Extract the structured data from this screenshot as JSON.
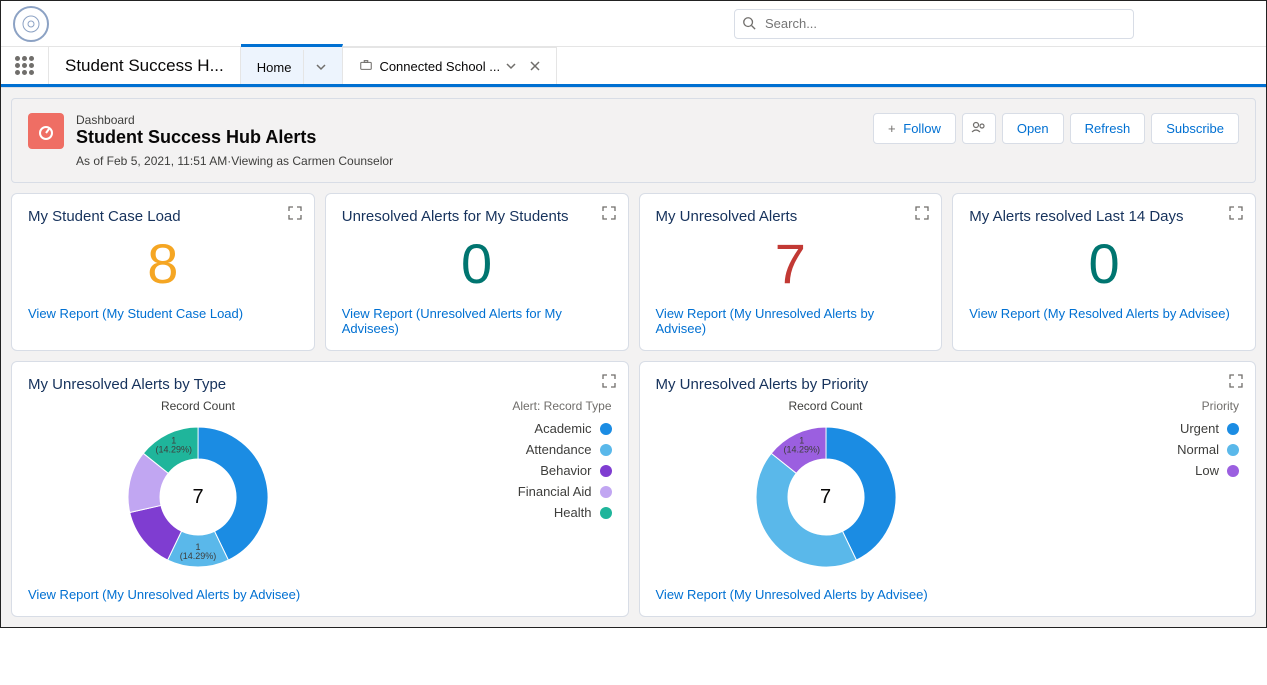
{
  "search": {
    "placeholder": "Search..."
  },
  "nav": {
    "app_name": "Student Success H...",
    "tab_home": "Home",
    "tab_connected": "Connected School ..."
  },
  "header": {
    "kicker": "Dashboard",
    "title": "Student Success Hub Alerts",
    "meta": "As of Feb 5, 2021, 11:51 AM·Viewing as Carmen Counselor",
    "follow": "Follow",
    "open": "Open",
    "refresh": "Refresh",
    "subscribe": "Subscribe"
  },
  "kpi": [
    {
      "title": "My Student Case Load",
      "value": "8",
      "color": "#f5a623",
      "link": "View Report (My Student Case Load)"
    },
    {
      "title": "Unresolved Alerts for My Students",
      "value": "0",
      "color": "#007570",
      "link": "View Report (Unresolved Alerts for My Advisees)"
    },
    {
      "title": "My Unresolved Alerts",
      "value": "7",
      "color": "#c23934",
      "link": "View Report (My Unresolved Alerts by Advisee)"
    },
    {
      "title": "My Alerts resolved Last 14 Days",
      "value": "0",
      "color": "#007570",
      "link": "View Report (My Resolved Alerts by Advisee)"
    }
  ],
  "chart_type": {
    "type": "donut",
    "card_title": "My Unresolved Alerts by Type",
    "chart_title": "Record Count",
    "center_value": "7",
    "legend_title": "Alert: Record Type",
    "link": "View Report (My Unresolved Alerts by Advisee)",
    "segments": [
      {
        "label": "Academic",
        "value": 3,
        "pct": 42.86,
        "color": "#1b8ce3"
      },
      {
        "label": "Attendance",
        "value": 1,
        "pct": 14.29,
        "color": "#5ab8ea"
      },
      {
        "label": "Behavior",
        "value": 1,
        "pct": 14.29,
        "color": "#7f3dd1"
      },
      {
        "label": "Financial Aid",
        "value": 1,
        "pct": 14.29,
        "color": "#c1a6f2"
      },
      {
        "label": "Health",
        "value": 1,
        "pct": 14.29,
        "color": "#1fb59b"
      }
    ],
    "callouts": [
      {
        "segment": 4,
        "text1": "1",
        "text2": "(14.29%)"
      },
      {
        "segment": 1,
        "text1": "1",
        "text2": "(14.29%)"
      }
    ]
  },
  "chart_priority": {
    "type": "donut",
    "card_title": "My Unresolved Alerts by Priority",
    "chart_title": "Record Count",
    "center_value": "7",
    "legend_title": "Priority",
    "link": "View Report (My Unresolved Alerts by Advisee)",
    "segments": [
      {
        "label": "Urgent",
        "value": 3,
        "pct": 42.86,
        "color": "#1b8ce3"
      },
      {
        "label": "Normal",
        "value": 3,
        "pct": 42.86,
        "color": "#5ab8ea"
      },
      {
        "label": "Low",
        "value": 1,
        "pct": 14.29,
        "color": "#9b5fe0"
      }
    ],
    "callouts": [
      {
        "segment": 2,
        "text1": "1",
        "text2": "(14.29%)"
      }
    ]
  },
  "colors": {
    "link": "#0070d2",
    "border": "#d8dde6",
    "bg": "#f3f2f2"
  }
}
